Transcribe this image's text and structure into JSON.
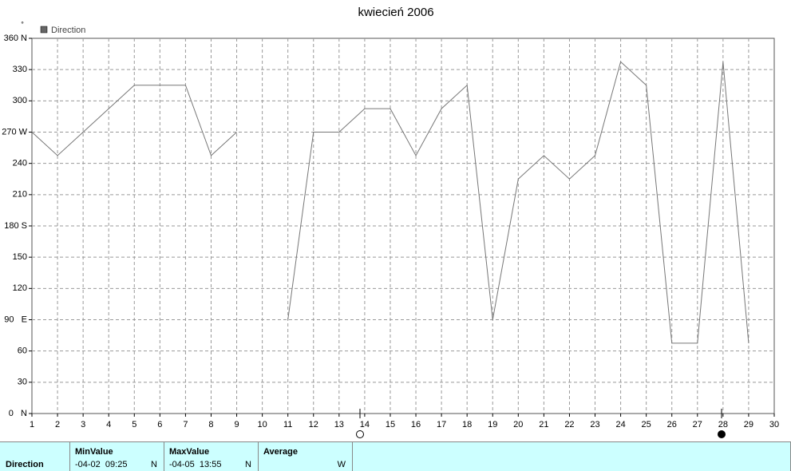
{
  "chart_data": {
    "type": "line",
    "title": "kwiecień 2006",
    "y_label": "°",
    "x": [
      1,
      2,
      3,
      4,
      5,
      6,
      7,
      8,
      9,
      10,
      11,
      12,
      13,
      14,
      15,
      16,
      17,
      18,
      19,
      20,
      21,
      22,
      23,
      24,
      25,
      26,
      27,
      28,
      29
    ],
    "series": [
      {
        "name": "Direction",
        "color": "#777777",
        "values": [
          270,
          247.5,
          270,
          292.5,
          315,
          315,
          315,
          247.5,
          270,
          null,
          90,
          270,
          270,
          292.5,
          292.5,
          247.5,
          292.5,
          315,
          90,
          225,
          247.5,
          225,
          247.5,
          337.5,
          315,
          67.5,
          67.5,
          337.5,
          67.5
        ]
      }
    ],
    "xlim": [
      1,
      30
    ],
    "xticks": [
      1,
      2,
      3,
      4,
      5,
      6,
      7,
      8,
      9,
      10,
      11,
      12,
      13,
      14,
      15,
      16,
      17,
      18,
      19,
      20,
      21,
      22,
      23,
      24,
      25,
      26,
      27,
      28,
      29,
      30
    ],
    "ylim": [
      0,
      360
    ],
    "yticks": [
      {
        "value": 0,
        "label": "0   N"
      },
      30,
      60,
      {
        "value": 90,
        "label": "90   E"
      },
      120,
      150,
      {
        "value": 180,
        "label": "180 S"
      },
      210,
      240,
      {
        "value": 270,
        "label": "270 W"
      },
      300,
      330,
      {
        "value": 360,
        "label": "360 N"
      }
    ],
    "grid": true
  },
  "table": {
    "row_label": "Direction",
    "columns": [
      {
        "header": "MinValue",
        "value": "-04-02  09:25",
        "unit": "N"
      },
      {
        "header": "MaxValue",
        "value": "-04-05  13:55",
        "unit": "N"
      },
      {
        "header": "Average",
        "unit": "W"
      }
    ]
  }
}
